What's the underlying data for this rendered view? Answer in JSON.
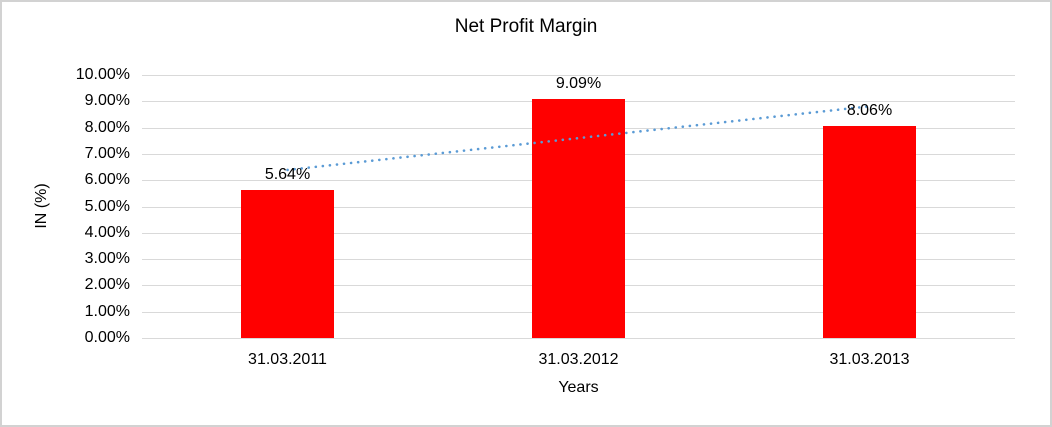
{
  "window": {
    "background_color": "#FFFFFF",
    "border_color": "#D2D2D2"
  },
  "chart_data": {
    "type": "bar",
    "title": "Net Profit Margin",
    "xlabel": "Years",
    "ylabel": "IN (%)",
    "categories": [
      "31.03.2011",
      "31.03.2012",
      "31.03.2013"
    ],
    "values": [
      5.64,
      9.09,
      8.06
    ],
    "data_labels": [
      "5.64%",
      "9.09%",
      "8.06%"
    ],
    "ylim": [
      0,
      10
    ],
    "ytick_step": 1,
    "ytick_labels": [
      "0.00%",
      "1.00%",
      "2.00%",
      "3.00%",
      "4.00%",
      "5.00%",
      "6.00%",
      "7.00%",
      "8.00%",
      "9.00%",
      "10.00%"
    ],
    "grid": true,
    "legend": "none",
    "bar_color": "#FF0000",
    "gridline_color": "#D9D9D9",
    "label_color": "#000000",
    "trendline": {
      "type": "linear",
      "style": "dotted",
      "color": "#5B9BD5",
      "start_value": 6.39,
      "end_value": 8.81
    }
  }
}
